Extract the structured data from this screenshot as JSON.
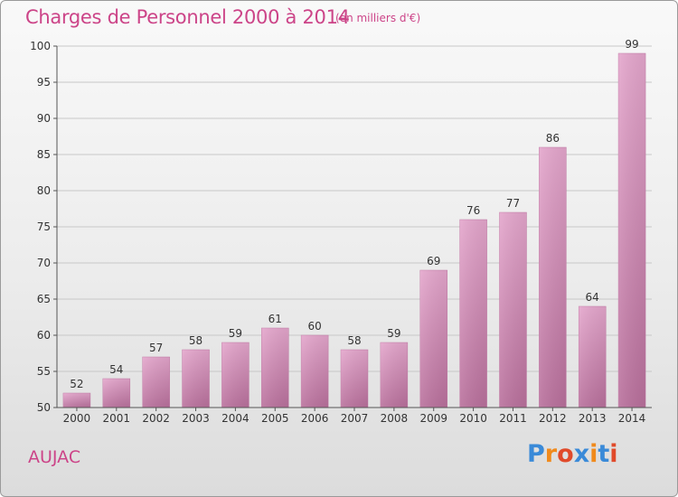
{
  "chart_data": {
    "type": "bar",
    "title": "Charges de Personnel 2000 à 2014",
    "subtitle": "(en milliers d'€)",
    "categories": [
      "2000",
      "2001",
      "2002",
      "2003",
      "2004",
      "2005",
      "2006",
      "2007",
      "2008",
      "2009",
      "2010",
      "2011",
      "2012",
      "2013",
      "2014"
    ],
    "values": [
      52,
      54,
      57,
      58,
      59,
      61,
      60,
      58,
      59,
      69,
      76,
      77,
      86,
      64,
      99
    ],
    "ylim": [
      50,
      100
    ],
    "yticks": [
      50,
      55,
      60,
      65,
      70,
      75,
      80,
      85,
      90,
      95,
      100
    ],
    "grid": true,
    "bar_color": "#d98cb8",
    "label_color": "#cc4488"
  },
  "footer": {
    "commune": "AUJAC"
  },
  "logo": {
    "text": "Proxiti",
    "letter_colors": [
      "#3a8ad8",
      "#f08a1c",
      "#e04a2a",
      "#3a8ad8",
      "#f08a1c",
      "#3a8ad8",
      "#e04a2a"
    ]
  }
}
